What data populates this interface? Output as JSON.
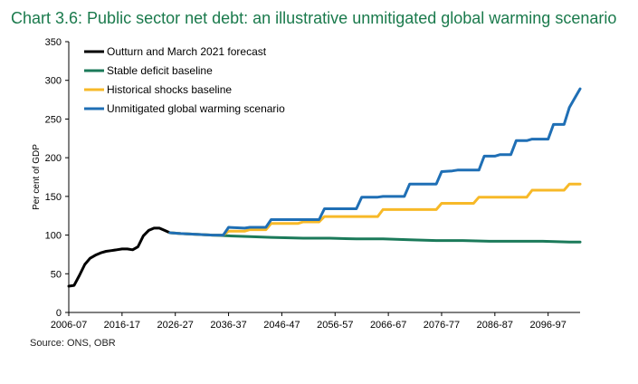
{
  "title": "Chart 3.6: Public sector net debt: an illustrative unmitigated global warming scenario",
  "source": "Source: ONS, OBR",
  "chart_data": {
    "type": "line",
    "ylabel": "Per cent of GDP",
    "xlabel": "",
    "ylim": [
      0,
      350
    ],
    "yticks": [
      0,
      50,
      100,
      150,
      200,
      250,
      300,
      350
    ],
    "xlim": [
      2006,
      2102
    ],
    "xticks": [
      "2006-07",
      "2016-17",
      "2026-27",
      "2036-37",
      "2046-47",
      "2056-57",
      "2066-67",
      "2076-77",
      "2086-87",
      "2096-97"
    ],
    "xtick_years": [
      2006,
      2016,
      2026,
      2036,
      2046,
      2056,
      2066,
      2076,
      2086,
      2096
    ],
    "legend_position": "top-left",
    "series": [
      {
        "name": "Outturn and March 2021 forecast",
        "color": "#000000",
        "x": [
          2006,
          2007,
          2008,
          2009,
          2010,
          2011,
          2012,
          2013,
          2014,
          2015,
          2016,
          2017,
          2018,
          2019,
          2020,
          2021,
          2022,
          2023,
          2024,
          2025
        ],
        "y": [
          34,
          35,
          48,
          62,
          70,
          74,
          77,
          79,
          80,
          81,
          82,
          82,
          81,
          85,
          99,
          106,
          109,
          109,
          106,
          103
        ]
      },
      {
        "name": "Stable deficit baseline",
        "color": "#1b7a5a",
        "x": [
          2025,
          2027,
          2030,
          2033,
          2036,
          2040,
          2044,
          2050,
          2055,
          2060,
          2065,
          2070,
          2075,
          2080,
          2085,
          2090,
          2095,
          2100,
          2102
        ],
        "y": [
          103,
          102,
          101,
          100,
          99,
          98,
          97,
          96,
          96,
          95,
          95,
          94,
          93,
          93,
          92,
          92,
          92,
          91,
          91
        ]
      },
      {
        "name": "Historical shocks baseline",
        "color": "#f7b928",
        "x": [
          2025,
          2027,
          2030,
          2033,
          2035,
          2036,
          2039,
          2040,
          2043,
          2044,
          2049,
          2050,
          2053,
          2054,
          2059,
          2060,
          2064,
          2065,
          2069,
          2070,
          2075,
          2076,
          2079,
          2080,
          2082,
          2083,
          2089,
          2090,
          2092,
          2093,
          2099,
          2100,
          2102
        ],
        "y": [
          103,
          102,
          101,
          100,
          100,
          105,
          105,
          107,
          107,
          115,
          115,
          117,
          117,
          124,
          124,
          124,
          124,
          133,
          133,
          133,
          133,
          141,
          141,
          141,
          141,
          149,
          149,
          149,
          149,
          158,
          158,
          166,
          166
        ]
      },
      {
        "name": "Unmitigated global warming scenario",
        "color": "#1f6fb5",
        "x": [
          2025,
          2027,
          2030,
          2033,
          2035,
          2036,
          2039,
          2040,
          2043,
          2044,
          2049,
          2050,
          2053,
          2054,
          2056,
          2057,
          2060,
          2061,
          2064,
          2065,
          2069,
          2070,
          2072,
          2073,
          2075,
          2076,
          2078,
          2079,
          2083,
          2084,
          2086,
          2087,
          2089,
          2090,
          2092,
          2093,
          2096,
          2097,
          2099,
          2100,
          2102
        ],
        "y": [
          103,
          102,
          101,
          100,
          100,
          110,
          109,
          110,
          110,
          120,
          120,
          120,
          120,
          134,
          134,
          134,
          134,
          149,
          149,
          150,
          150,
          166,
          166,
          166,
          166,
          182,
          183,
          184,
          184,
          202,
          202,
          204,
          204,
          222,
          222,
          224,
          224,
          243,
          243,
          265,
          289
        ]
      }
    ]
  }
}
